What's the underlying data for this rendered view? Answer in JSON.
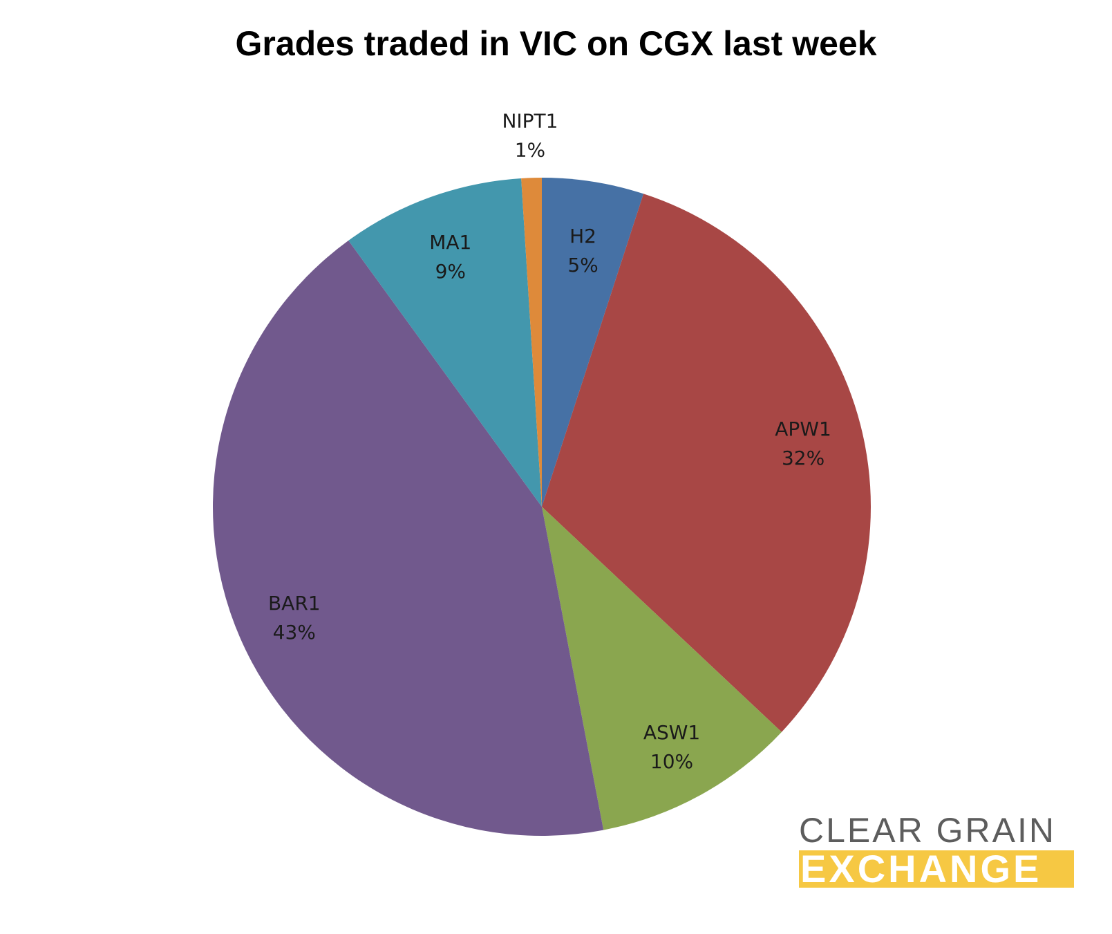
{
  "chart_data": {
    "type": "pie",
    "title": "Grades traded in VIC on CGX last week",
    "slices": [
      {
        "name": "H2",
        "value": 5,
        "percent_label": "5%",
        "color": "#4671a5"
      },
      {
        "name": "APW1",
        "value": 32,
        "percent_label": "32%",
        "color": "#a84745"
      },
      {
        "name": "ASW1",
        "value": 10,
        "percent_label": "10%",
        "color": "#8aa64f"
      },
      {
        "name": "BAR1",
        "value": 43,
        "percent_label": "43%",
        "color": "#71598d"
      },
      {
        "name": "MA1",
        "value": 9,
        "percent_label": "9%",
        "color": "#4397ad"
      },
      {
        "name": "NIPT1",
        "value": 1,
        "percent_label": "1%",
        "color": "#de8a3a"
      }
    ],
    "start_angle": "12 o'clock",
    "direction": "clockwise",
    "legend": "none"
  },
  "logo": {
    "line1": "CLEAR GRAIN",
    "line2": "EXCHANGE",
    "line1_color": "#5d5d5d",
    "line2_background": "#f6c843",
    "line2_color": "#ffffff"
  }
}
